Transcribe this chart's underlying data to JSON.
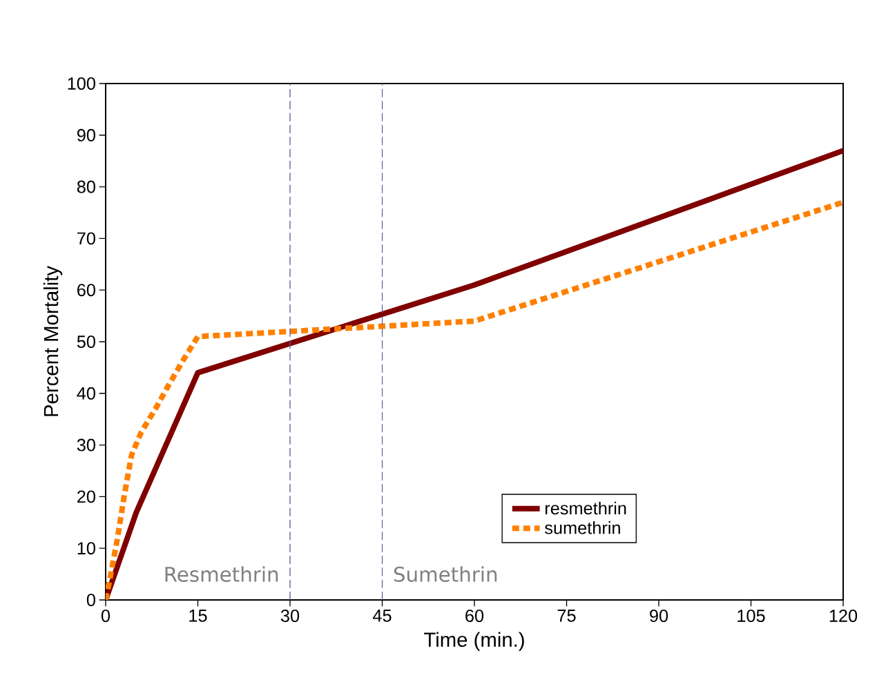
{
  "chart_data": {
    "type": "line",
    "xlabel": "Time (min.)",
    "ylabel": "Percent Mortality",
    "xlim": [
      0,
      120
    ],
    "xticks": [
      0,
      15,
      30,
      45,
      60,
      75,
      90,
      105,
      120
    ],
    "ylim": [
      0,
      100
    ],
    "yticks": [
      0,
      10,
      20,
      30,
      40,
      50,
      60,
      70,
      80,
      90,
      100
    ],
    "grid": false,
    "legend": "bottom right",
    "marker": "none",
    "series": [
      {
        "name": "resmethrin",
        "color": "#800000",
        "line_style": "solid",
        "x": [
          0,
          5,
          15,
          60,
          120
        ],
        "values": [
          0,
          17,
          44,
          61,
          87
        ]
      },
      {
        "name": "sumethrin",
        "color": "#ff8000",
        "line_style": "dotted",
        "x": [
          0,
          0.8,
          1.9,
          3,
          4.2,
          5.8,
          8.1,
          10.3,
          12.6,
          15,
          60,
          120
        ],
        "values": [
          0,
          4.8,
          11.8,
          20,
          28,
          32.5,
          37,
          41.7,
          46.4,
          51,
          54,
          77
        ]
      }
    ],
    "ref_lines": [
      {
        "axis": "x",
        "value": 30,
        "color": "#5a5a9a",
        "line_style": "dashed",
        "label": "Resmethrin"
      },
      {
        "axis": "x",
        "value": 45,
        "color": "#5a5a9a",
        "line_style": "dashed",
        "label": "Sumethrin"
      }
    ]
  }
}
